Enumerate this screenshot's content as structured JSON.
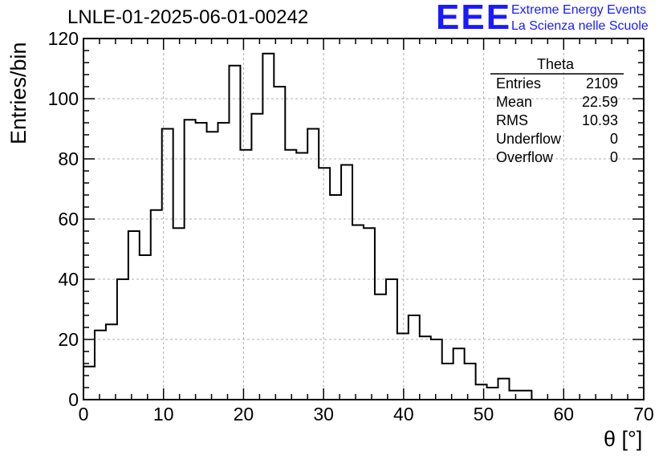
{
  "header": {
    "title": "LNLE-01-2025-06-01-00242",
    "logo_mark": "EEE",
    "logo_line1": "Extreme Energy Events",
    "logo_line2": "La Scienza nelle Scuole"
  },
  "colors": {
    "logo": "#1a1aff",
    "line": "#000000",
    "grid": "#b0b0b0"
  },
  "chart_data": {
    "type": "bar",
    "subtype": "histogram-step",
    "xlabel": "θ [°]",
    "ylabel": "Entries/bin",
    "xlim": [
      0,
      70
    ],
    "ylim": [
      0,
      120
    ],
    "x_ticks": [
      "0",
      "10",
      "20",
      "30",
      "40",
      "50",
      "60",
      "70"
    ],
    "y_ticks": [
      "0",
      "20",
      "40",
      "60",
      "80",
      "100",
      "120"
    ],
    "grid": true,
    "bin_width": 1.4,
    "bin_edges_start": 0,
    "values": [
      11,
      23,
      25,
      40,
      56,
      48,
      63,
      90,
      57,
      93,
      92,
      89,
      92,
      111,
      83,
      95,
      115,
      104,
      83,
      82,
      90,
      77,
      68,
      78,
      58,
      57,
      35,
      40,
      22,
      28,
      21,
      20,
      12,
      17,
      12,
      5,
      4,
      7,
      3,
      3
    ],
    "stats_box": {
      "title": "Theta",
      "position": "top-right",
      "rows": [
        {
          "label": "Entries",
          "value": "2109"
        },
        {
          "label": "Mean",
          "value": "22.59"
        },
        {
          "label": "RMS",
          "value": "10.93"
        },
        {
          "label": "Underflow",
          "value": "0"
        },
        {
          "label": "Overflow",
          "value": "0"
        }
      ]
    }
  }
}
